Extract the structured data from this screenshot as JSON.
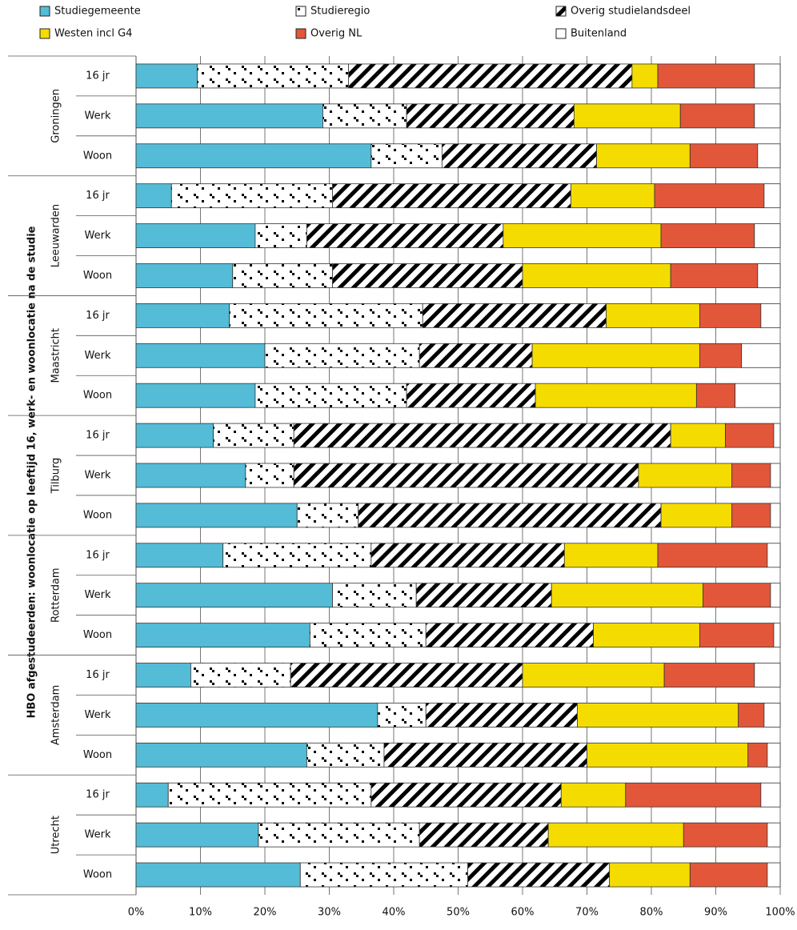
{
  "chart_data": {
    "type": "stacked-barh",
    "ylabel": "HBO afgestudeerden: woonlocatie op leeftijd 16, werk- en woonlocatie na de studie",
    "groups": [
      "Groningen",
      "Leeuwarden",
      "Maastricht",
      "Tilburg",
      "Rotterdam",
      "Amsterdam",
      "Utrecht"
    ],
    "categories": [
      "16 jr",
      "Werk",
      "Woon",
      "16 jr",
      "Werk",
      "Woon",
      "16 jr",
      "Werk",
      "Woon",
      "16 jr",
      "Werk",
      "Woon",
      "16 jr",
      "Werk",
      "Woon",
      "16 jr",
      "Werk",
      "Woon",
      "16 jr",
      "Werk",
      "Woon"
    ],
    "series": [
      {
        "name": "Studiegemeente",
        "color": "#54bcd6",
        "values": [
          9.5,
          29,
          36.5,
          5.5,
          18.5,
          15,
          14.5,
          20,
          18.5,
          12,
          17,
          25,
          13.5,
          30.5,
          27,
          8.5,
          37.5,
          26.5,
          5,
          19,
          25.5
        ]
      },
      {
        "name": "Studieregio",
        "color": "#ffffff",
        "pattern": "dots",
        "values": [
          23.5,
          13,
          11,
          25,
          8,
          15.5,
          30,
          24,
          23.5,
          12.5,
          7.5,
          9.5,
          23,
          13,
          18,
          15.5,
          7.5,
          12,
          31.5,
          25,
          26
        ]
      },
      {
        "name": "Overig studielandsdeel",
        "color": "#ffffff",
        "pattern": "stripes",
        "values": [
          44,
          26,
          24,
          37,
          30.5,
          29.5,
          28.5,
          17.5,
          20,
          58.5,
          53.5,
          47,
          30,
          21,
          26,
          36,
          23.5,
          31.5,
          29.5,
          20,
          22
        ]
      },
      {
        "name": "Westen incl G4",
        "color": "#f5dc00",
        "values": [
          4,
          16.5,
          14.5,
          13,
          24.5,
          23,
          14.5,
          26,
          25,
          8.5,
          14.5,
          11,
          14.5,
          23.5,
          16.5,
          22,
          25,
          25,
          10,
          21,
          12.5
        ]
      },
      {
        "name": "Overig NL",
        "color": "#e2573a",
        "values": [
          15,
          11.5,
          10.5,
          17,
          14.5,
          13.5,
          9.5,
          6.5,
          6,
          7.5,
          6,
          6,
          17,
          10.5,
          11.5,
          14,
          4,
          3,
          21,
          13,
          12
        ]
      },
      {
        "name": "Buitenland",
        "color": "#ffffff",
        "values": [
          4,
          4,
          3.5,
          2.5,
          4,
          3.5,
          3,
          6,
          7,
          1,
          1.5,
          1.5,
          2,
          1.5,
          1,
          4,
          2.5,
          2,
          3,
          2,
          2
        ]
      }
    ],
    "xlim": [
      0,
      100
    ],
    "xticks": [
      {
        "value": 0,
        "label": "0%"
      },
      {
        "value": 10,
        "label": "10%"
      },
      {
        "value": 20,
        "label": "20%"
      },
      {
        "value": 30,
        "label": "30%"
      },
      {
        "value": 40,
        "label": "40%"
      },
      {
        "value": 50,
        "label": "50%"
      },
      {
        "value": 60,
        "label": "60%"
      },
      {
        "value": 70,
        "label": "70%"
      },
      {
        "value": 80,
        "label": "80%"
      },
      {
        "value": 90,
        "label": "90%"
      },
      {
        "value": 100,
        "label": "100%"
      }
    ],
    "grid": true
  }
}
